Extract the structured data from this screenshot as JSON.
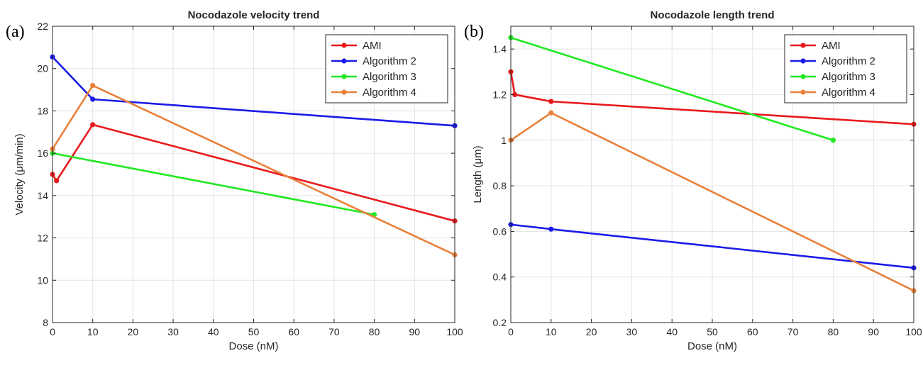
{
  "chart_data": [
    {
      "type": "line",
      "panel_label": "(a)",
      "title": "Nocodazole velocity trend",
      "xlabel": "Dose (nM)",
      "ylabel": "Velocity (μm/min)",
      "xlim": [
        0,
        100
      ],
      "ylim": [
        8,
        22
      ],
      "xticks": [
        0,
        10,
        20,
        30,
        40,
        50,
        60,
        70,
        80,
        90,
        100
      ],
      "yticks": [
        8,
        10,
        12,
        14,
        16,
        18,
        20,
        22
      ],
      "grid": true,
      "legend_position": "top-right",
      "series": [
        {
          "name": "AMI",
          "color": "#e8191b",
          "x": [
            0,
            1,
            10,
            100
          ],
          "y": [
            15.0,
            14.7,
            17.35,
            12.8
          ]
        },
        {
          "name": "Algorithm 2",
          "color": "#1b1be8",
          "x": [
            0,
            10,
            100
          ],
          "y": [
            20.55,
            18.55,
            17.3
          ]
        },
        {
          "name": "Algorithm 3",
          "color": "#22e822",
          "x": [
            0,
            80
          ],
          "y": [
            16.0,
            13.1
          ]
        },
        {
          "name": "Algorithm 4",
          "color": "#e8803a",
          "x": [
            0,
            10,
            100
          ],
          "y": [
            16.2,
            19.2,
            11.2
          ]
        }
      ]
    },
    {
      "type": "line",
      "panel_label": "(b)",
      "title": "Nocodazole length trend",
      "xlabel": "Dose (nM)",
      "ylabel": "Length (μm)",
      "xlim": [
        0,
        100
      ],
      "ylim": [
        0.2,
        1.5
      ],
      "xticks": [
        0,
        10,
        20,
        30,
        40,
        50,
        60,
        70,
        80,
        90,
        100
      ],
      "yticks": [
        0.2,
        0.4,
        0.6,
        0.8,
        1.0,
        1.2,
        1.4
      ],
      "ytick_labels": [
        "0.2",
        "0.4",
        "0.6",
        "0.8",
        "1",
        "1.2",
        "1.4"
      ],
      "grid": true,
      "legend_position": "top-right",
      "series": [
        {
          "name": "AMI",
          "color": "#e8191b",
          "x": [
            0,
            1,
            10,
            100
          ],
          "y": [
            1.3,
            1.2,
            1.17,
            1.07
          ]
        },
        {
          "name": "Algorithm 2",
          "color": "#1b1be8",
          "x": [
            0,
            10,
            100
          ],
          "y": [
            0.63,
            0.61,
            0.44
          ]
        },
        {
          "name": "Algorithm 3",
          "color": "#22e822",
          "x": [
            0,
            80
          ],
          "y": [
            1.45,
            1.0
          ]
        },
        {
          "name": "Algorithm 4",
          "color": "#e8803a",
          "x": [
            0,
            10,
            100
          ],
          "y": [
            1.0,
            1.12,
            0.34
          ]
        }
      ]
    }
  ]
}
